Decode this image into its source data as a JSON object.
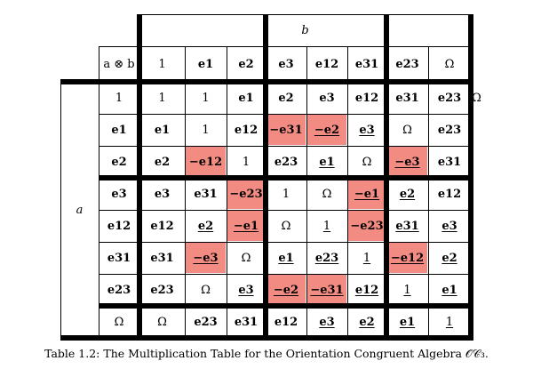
{
  "table": {
    "col_var": "b",
    "row_var": "a",
    "corner": "a ⊗ b",
    "col_headers": [
      {
        "t": "1",
        "bold": false
      },
      {
        "t": "e1",
        "bold": true
      },
      {
        "t": "e2",
        "bold": true
      },
      {
        "t": "e3",
        "bold": true
      },
      {
        "t": "e12",
        "bold": true
      },
      {
        "t": "e31",
        "bold": true
      },
      {
        "t": "e23",
        "bold": true
      },
      {
        "t": "Ω",
        "bold": false
      }
    ],
    "first_row": [
      {
        "t": "1",
        "bold": false
      },
      {
        "t": "e1",
        "bold": true
      },
      {
        "t": "e2",
        "bold": true
      },
      {
        "t": "e3",
        "bold": true
      },
      {
        "t": "e12",
        "bold": true
      },
      {
        "t": "e31",
        "bold": true
      },
      {
        "t": "e23",
        "bold": true
      },
      {
        "t": "Ω",
        "bold": false
      }
    ],
    "rows": [
      {
        "h": {
          "t": "1",
          "bold": false
        },
        "first": {
          "t": "1",
          "bold": false
        },
        "cells": [
          {
            "t": "1",
            "bold": false
          },
          {
            "t": "e1",
            "bold": true
          },
          {
            "t": "e2",
            "bold": true
          },
          {
            "t": "e3",
            "bold": true
          },
          {
            "t": "e12",
            "bold": true
          },
          {
            "t": "e31",
            "bold": true
          },
          {
            "t": "e23",
            "bold": true
          },
          {
            "t": "Ω",
            "bold": false
          }
        ]
      },
      {
        "h": {
          "t": "e1",
          "bold": true
        },
        "first": {
          "t": "e1",
          "bold": true
        },
        "cells": [
          {
            "t": "1",
            "bold": false
          },
          {
            "t": "e12",
            "bold": true
          },
          {
            "t": "−e31",
            "bold": true,
            "neg": true
          },
          {
            "t": "−e2",
            "bold": true,
            "neg": true,
            "ul": true
          },
          {
            "t": "e3",
            "bold": true,
            "ul": true
          },
          {
            "t": "Ω",
            "bold": false
          },
          {
            "t": "e23",
            "bold": true
          }
        ]
      },
      {
        "h": {
          "t": "e2",
          "bold": true
        },
        "first": {
          "t": "e2",
          "bold": true
        },
        "cells": [
          {
            "t": "−e12",
            "bold": true,
            "neg": true
          },
          {
            "t": "1",
            "bold": false
          },
          {
            "t": "e23",
            "bold": true
          },
          {
            "t": "e1",
            "bold": true,
            "ul": true
          },
          {
            "t": "Ω",
            "bold": false
          },
          {
            "t": "−e3",
            "bold": true,
            "neg": true,
            "ul": true
          },
          {
            "t": "e31",
            "bold": true
          }
        ]
      },
      {
        "h": {
          "t": "e3",
          "bold": true
        },
        "first": {
          "t": "e3",
          "bold": true
        },
        "cells": [
          {
            "t": "e31",
            "bold": true
          },
          {
            "t": "−e23",
            "bold": true,
            "neg": true
          },
          {
            "t": "1",
            "bold": false
          },
          {
            "t": "Ω",
            "bold": false
          },
          {
            "t": "−e1",
            "bold": true,
            "neg": true,
            "ul": true
          },
          {
            "t": "e2",
            "bold": true,
            "ul": true
          },
          {
            "t": "e12",
            "bold": true
          }
        ]
      },
      {
        "h": {
          "t": "e12",
          "bold": true
        },
        "first": {
          "t": "e12",
          "bold": true
        },
        "cells": [
          {
            "t": "e2",
            "bold": true,
            "ul": true
          },
          {
            "t": "−e1",
            "bold": true,
            "neg": true,
            "ul": true
          },
          {
            "t": "Ω",
            "bold": false
          },
          {
            "t": "1",
            "bold": false,
            "ul": true
          },
          {
            "t": "−e23",
            "bold": true,
            "neg": true
          },
          {
            "t": "e31",
            "bold": true,
            "ul": true
          },
          {
            "t": "e3",
            "bold": true,
            "ul": true
          }
        ]
      },
      {
        "h": {
          "t": "e31",
          "bold": true
        },
        "first": {
          "t": "e31",
          "bold": true
        },
        "cells": [
          {
            "t": "−e3",
            "bold": true,
            "neg": true,
            "ul": true
          },
          {
            "t": "Ω",
            "bold": false
          },
          {
            "t": "e1",
            "bold": true,
            "ul": true
          },
          {
            "t": "e23",
            "bold": true,
            "ul": true
          },
          {
            "t": "1",
            "bold": false,
            "ul": true
          },
          {
            "t": "−e12",
            "bold": true,
            "neg": true,
            "ul": true
          },
          {
            "t": "e2",
            "bold": true,
            "ul": true
          }
        ]
      },
      {
        "h": {
          "t": "e23",
          "bold": true
        },
        "first": {
          "t": "e23",
          "bold": true
        },
        "cells": [
          {
            "t": "Ω",
            "bold": false
          },
          {
            "t": "e3",
            "bold": true,
            "ul": true
          },
          {
            "t": "−e2",
            "bold": true,
            "neg": true,
            "ul": true
          },
          {
            "t": "−e31",
            "bold": true,
            "neg": true,
            "ul": true
          },
          {
            "t": "e12",
            "bold": true,
            "ul": true
          },
          {
            "t": "1",
            "bold": false,
            "ul": true
          },
          {
            "t": "e1",
            "bold": true,
            "ul": true
          }
        ]
      },
      {
        "h": {
          "t": "Ω",
          "bold": false
        },
        "first": {
          "t": "Ω",
          "bold": false
        },
        "cells": [
          {
            "t": "e23",
            "bold": true
          },
          {
            "t": "e31",
            "bold": true
          },
          {
            "t": "e12",
            "bold": true
          },
          {
            "t": "e3",
            "bold": true,
            "ul": true
          },
          {
            "t": "e2",
            "bold": true,
            "ul": true
          },
          {
            "t": "e1",
            "bold": true,
            "ul": true
          },
          {
            "t": "1",
            "bold": false,
            "ul": true
          }
        ]
      }
    ]
  },
  "caption": "Table 1.2: The Multiplication Table for the Orientation Congruent Algebra 𝒪𝒞₃.",
  "colors": {
    "negative_fill": "#f28b82",
    "rules": "#000000"
  }
}
